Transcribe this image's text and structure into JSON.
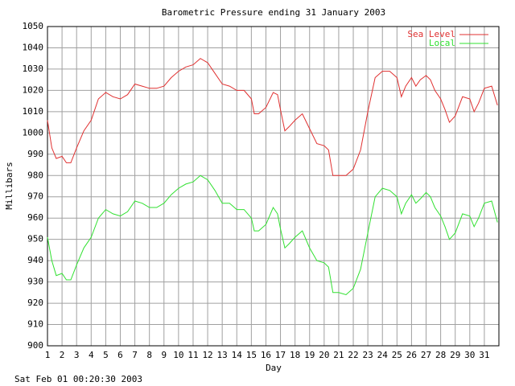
{
  "chart_data": {
    "type": "line",
    "title": "Barometric Pressure ending 31 January 2003",
    "xlabel": "Day",
    "ylabel": "Millibars",
    "footer": "Sat Feb 01 00:20:30 2003",
    "grid": true,
    "legend": "top-right",
    "xlim": [
      1,
      32
    ],
    "ylim": [
      900,
      1050
    ],
    "xticks": [
      1,
      2,
      3,
      4,
      5,
      6,
      7,
      8,
      9,
      10,
      11,
      12,
      13,
      14,
      15,
      16,
      17,
      18,
      19,
      20,
      21,
      22,
      23,
      24,
      25,
      26,
      27,
      28,
      29,
      30,
      31
    ],
    "yticks": [
      900,
      910,
      920,
      930,
      940,
      950,
      960,
      970,
      980,
      990,
      1000,
      1010,
      1020,
      1030,
      1040,
      1050
    ],
    "x": [
      1,
      1.3,
      1.6,
      2,
      2.3,
      2.6,
      3,
      3.5,
      4,
      4.5,
      5,
      5.5,
      6,
      6.5,
      7,
      7.5,
      8,
      8.5,
      9,
      9.5,
      10,
      10.5,
      11,
      11.5,
      12,
      12.5,
      13,
      13.5,
      14,
      14.5,
      15,
      15.2,
      15.5,
      16,
      16.5,
      16.8,
      17,
      17.3,
      17.6,
      18,
      18.5,
      19,
      19.5,
      20,
      20.3,
      20.6,
      21,
      21.5,
      22,
      22.5,
      23,
      23.5,
      24,
      24.5,
      25,
      25.3,
      25.6,
      26,
      26.3,
      26.6,
      27,
      27.3,
      27.6,
      28,
      28.3,
      28.6,
      29,
      29.5,
      30,
      30.3,
      30.6,
      31,
      31.5,
      31.9
    ],
    "series": [
      {
        "name": "Sea Level",
        "color": "#e03030",
        "values": [
          1006,
          993,
          988,
          989,
          986,
          986,
          993,
          1001,
          1006,
          1016,
          1019,
          1017,
          1016,
          1018,
          1023,
          1022,
          1021,
          1021,
          1022,
          1026,
          1029,
          1031,
          1032,
          1035,
          1033,
          1028,
          1023,
          1022,
          1020,
          1020,
          1016,
          1009,
          1009,
          1012,
          1019,
          1018,
          1011,
          1001,
          1003,
          1006,
          1009,
          1002,
          995,
          994,
          992,
          980,
          980,
          980,
          983,
          992,
          1010,
          1026,
          1029,
          1029,
          1026,
          1017,
          1022,
          1026,
          1022,
          1025,
          1027,
          1025,
          1020,
          1016,
          1011,
          1005,
          1008,
          1017,
          1016,
          1010,
          1014,
          1021,
          1022,
          1013
        ]
      },
      {
        "name": "Local",
        "color": "#30e030",
        "values": [
          951,
          940,
          933,
          934,
          931,
          931,
          938,
          946,
          951,
          960,
          964,
          962,
          961,
          963,
          968,
          967,
          965,
          965,
          967,
          971,
          974,
          976,
          977,
          980,
          978,
          973,
          967,
          967,
          964,
          964,
          960,
          954,
          954,
          957,
          965,
          962,
          955,
          946,
          948,
          951,
          954,
          946,
          940,
          939,
          937,
          925,
          925,
          924,
          927,
          936,
          953,
          970,
          974,
          973,
          970,
          962,
          967,
          971,
          967,
          969,
          972,
          970,
          965,
          961,
          956,
          950,
          953,
          962,
          961,
          956,
          960,
          967,
          968,
          958
        ]
      }
    ]
  }
}
